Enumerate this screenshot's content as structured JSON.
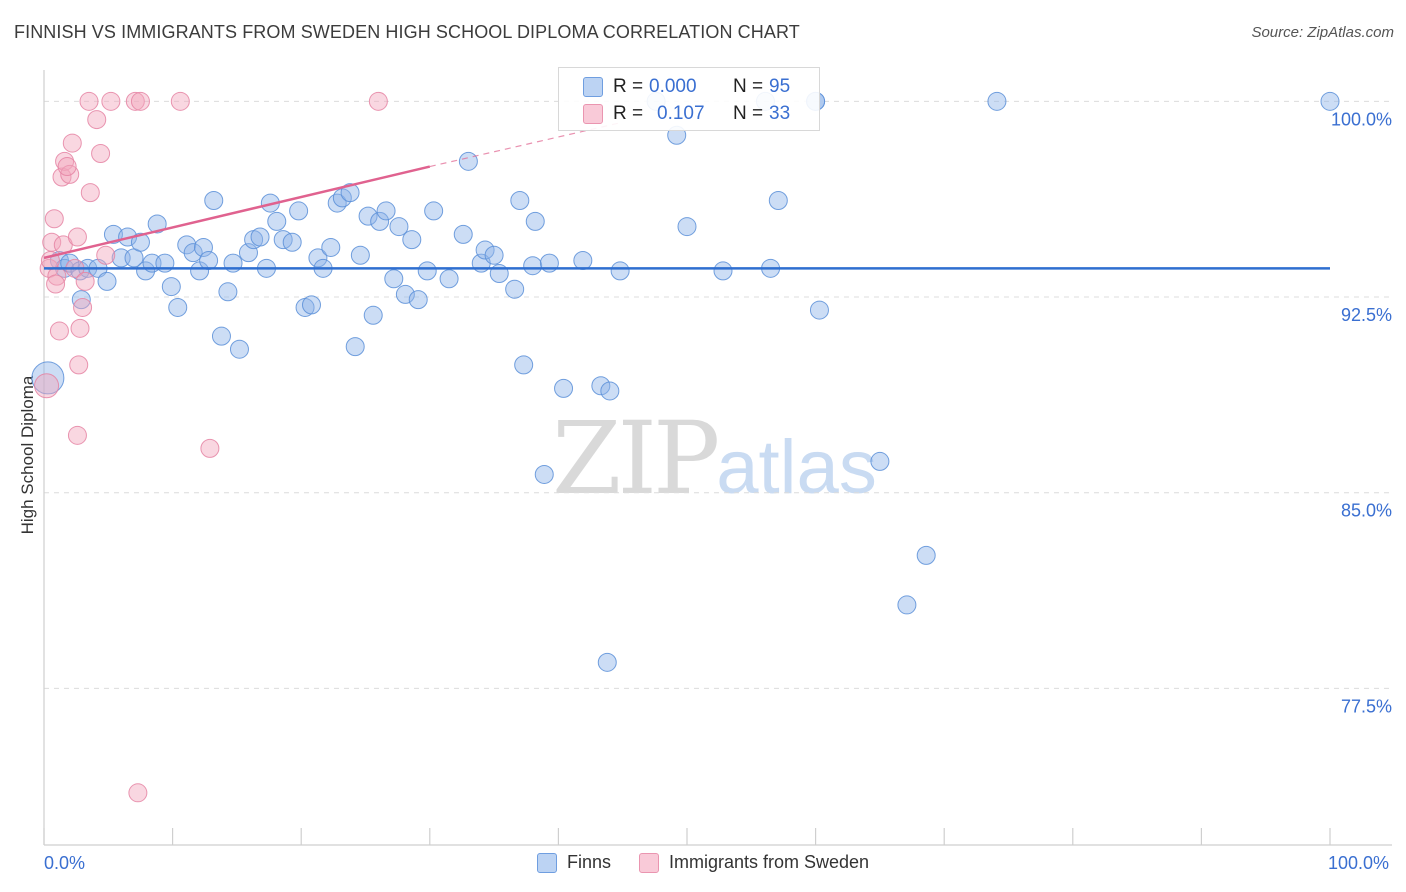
{
  "header": {
    "title": "FINNISH VS IMMIGRANTS FROM SWEDEN HIGH SCHOOL DIPLOMA CORRELATION CHART",
    "source": "Source: ZipAtlas.com"
  },
  "legend": {
    "r_label": "R =",
    "n_label": "N =",
    "finns": {
      "r": "0.000",
      "n": "95",
      "color": "#8fb4e8"
    },
    "sweden": {
      "r": "0.107",
      "n": "33",
      "color": "#f2a6bd"
    }
  },
  "watermark": {
    "zip": "ZIP",
    "atlas": "atlas"
  },
  "chart_data": {
    "type": "scatter",
    "title": "FINNISH VS IMMIGRANTS FROM SWEDEN HIGH SCHOOL DIPLOMA CORRELATION CHART",
    "xlabel": "",
    "ylabel": "High School Diploma",
    "xlim": [
      0,
      100
    ],
    "ylim": [
      71.5,
      101.2
    ],
    "x_tick_labels": [
      "0.0%",
      "100.0%"
    ],
    "y_ticks": [
      77.5,
      85.0,
      92.5,
      100.0
    ],
    "y_tick_labels": [
      "77.5%",
      "85.0%",
      "92.5%",
      "100.0%"
    ],
    "grid": true,
    "legend_position": "bottom",
    "series": [
      {
        "name": "Finns",
        "color": "#8fb4e8",
        "stroke": "#5b8fd8",
        "trend": {
          "x": [
            0,
            100
          ],
          "y": [
            93.6,
            93.6
          ],
          "color": "#2f6fd0"
        },
        "points": [
          [
            0.3,
            89.4,
            16
          ],
          [
            1.2,
            93.9,
            9
          ],
          [
            1.6,
            93.6,
            9
          ],
          [
            2.0,
            93.8,
            9
          ],
          [
            2.8,
            93.5,
            9
          ],
          [
            2.9,
            92.4,
            9
          ],
          [
            3.4,
            93.6,
            9
          ],
          [
            4.2,
            93.6,
            9
          ],
          [
            4.9,
            93.1,
            9
          ],
          [
            5.4,
            94.9,
            9
          ],
          [
            6.0,
            94.0,
            9
          ],
          [
            6.5,
            94.8,
            9
          ],
          [
            7.0,
            94.0,
            9
          ],
          [
            7.5,
            94.6,
            9
          ],
          [
            7.9,
            93.5,
            9
          ],
          [
            8.4,
            93.8,
            9
          ],
          [
            8.8,
            95.3,
            9
          ],
          [
            9.4,
            93.8,
            9
          ],
          [
            9.9,
            92.9,
            9
          ],
          [
            10.4,
            92.1,
            9
          ],
          [
            11.1,
            94.5,
            9
          ],
          [
            11.6,
            94.2,
            9
          ],
          [
            12.1,
            93.5,
            9
          ],
          [
            12.4,
            94.4,
            9
          ],
          [
            12.8,
            93.9,
            9
          ],
          [
            13.2,
            96.2,
            9
          ],
          [
            13.8,
            91.0,
            9
          ],
          [
            14.3,
            92.7,
            9
          ],
          [
            14.7,
            93.8,
            9
          ],
          [
            15.2,
            90.5,
            9
          ],
          [
            15.9,
            94.2,
            9
          ],
          [
            16.3,
            94.7,
            9
          ],
          [
            16.8,
            94.8,
            9
          ],
          [
            17.3,
            93.6,
            9
          ],
          [
            17.6,
            96.1,
            9
          ],
          [
            18.1,
            95.4,
            9
          ],
          [
            18.6,
            94.7,
            9
          ],
          [
            19.3,
            94.6,
            9
          ],
          [
            19.8,
            95.8,
            9
          ],
          [
            20.3,
            92.1,
            9
          ],
          [
            20.8,
            92.2,
            9
          ],
          [
            21.3,
            94.0,
            9
          ],
          [
            21.7,
            93.6,
            9
          ],
          [
            22.3,
            94.4,
            9
          ],
          [
            22.8,
            96.1,
            9
          ],
          [
            23.2,
            96.3,
            9
          ],
          [
            23.8,
            96.5,
            9
          ],
          [
            24.2,
            90.6,
            9
          ],
          [
            24.6,
            94.1,
            9
          ],
          [
            25.2,
            95.6,
            9
          ],
          [
            25.6,
            91.8,
            9
          ],
          [
            26.1,
            95.4,
            9
          ],
          [
            26.6,
            95.8,
            9
          ],
          [
            27.2,
            93.2,
            9
          ],
          [
            27.6,
            95.2,
            9
          ],
          [
            28.1,
            92.6,
            9
          ],
          [
            28.6,
            94.7,
            9
          ],
          [
            29.1,
            92.4,
            9
          ],
          [
            29.8,
            93.5,
            9
          ],
          [
            30.3,
            95.8,
            9
          ],
          [
            31.5,
            93.2,
            9
          ],
          [
            32.6,
            94.9,
            9
          ],
          [
            33.0,
            97.7,
            9
          ],
          [
            34.0,
            93.8,
            9
          ],
          [
            34.3,
            94.3,
            9
          ],
          [
            35.0,
            94.1,
            9
          ],
          [
            35.4,
            93.4,
            9
          ],
          [
            36.6,
            92.8,
            9
          ],
          [
            37.0,
            96.2,
            9
          ],
          [
            37.3,
            89.9,
            9
          ],
          [
            38.0,
            93.7,
            9
          ],
          [
            38.2,
            95.4,
            9
          ],
          [
            38.9,
            85.7,
            9
          ],
          [
            39.3,
            93.8,
            9
          ],
          [
            40.4,
            89.0,
            9
          ],
          [
            41.9,
            93.9,
            9
          ],
          [
            43.3,
            89.1,
            9
          ],
          [
            43.8,
            78.5,
            9
          ],
          [
            44.0,
            88.9,
            9
          ],
          [
            44.8,
            93.5,
            9
          ],
          [
            47.6,
            100.0,
            9
          ],
          [
            49.2,
            98.7,
            9
          ],
          [
            50.0,
            95.2,
            9
          ],
          [
            52.8,
            93.5,
            9
          ],
          [
            56.1,
            100.0,
            9
          ],
          [
            56.5,
            93.6,
            9
          ],
          [
            57.1,
            96.2,
            9
          ],
          [
            60.0,
            100.0,
            9
          ],
          [
            60.0,
            100.0,
            9
          ],
          [
            60.3,
            92.0,
            9
          ],
          [
            65.0,
            86.2,
            9
          ],
          [
            67.1,
            80.7,
            9
          ],
          [
            68.6,
            82.6,
            9
          ],
          [
            74.1,
            100.0,
            9
          ],
          [
            100.0,
            100.0,
            9
          ]
        ]
      },
      {
        "name": "Immigrants from Sweden",
        "color": "#f2a6bd",
        "stroke": "#e584a3",
        "trend": {
          "x": [
            0,
            30
          ],
          "y": [
            94.0,
            97.5
          ],
          "dash_to": [
            45,
            99.2
          ],
          "color": "#e0628f"
        },
        "points": [
          [
            0.2,
            89.1,
            12
          ],
          [
            0.4,
            93.6,
            9
          ],
          [
            0.6,
            94.6,
            9
          ],
          [
            0.8,
            95.5,
            9
          ],
          [
            1.0,
            93.3,
            9
          ],
          [
            1.2,
            91.2,
            9
          ],
          [
            1.4,
            97.1,
            9
          ],
          [
            1.5,
            94.5,
            9
          ],
          [
            1.6,
            97.7,
            9
          ],
          [
            2.0,
            97.2,
            9
          ],
          [
            2.2,
            98.4,
            9
          ],
          [
            2.4,
            93.6,
            9
          ],
          [
            2.6,
            94.8,
            9
          ],
          [
            2.6,
            87.2,
            9
          ],
          [
            2.7,
            89.9,
            9
          ],
          [
            2.8,
            91.3,
            9
          ],
          [
            3.0,
            92.1,
            9
          ],
          [
            3.2,
            93.1,
            9
          ],
          [
            3.5,
            100.0,
            9
          ],
          [
            3.6,
            96.5,
            9
          ],
          [
            4.1,
            99.3,
            9
          ],
          [
            4.4,
            98.0,
            9
          ],
          [
            4.8,
            94.1,
            9
          ],
          [
            5.2,
            100.0,
            9
          ],
          [
            7.1,
            100.0,
            9
          ],
          [
            7.3,
            73.5,
            9
          ],
          [
            7.5,
            100.0,
            9
          ],
          [
            10.6,
            100.0,
            9
          ],
          [
            12.9,
            86.7,
            9
          ],
          [
            26.0,
            100.0,
            9
          ],
          [
            0.5,
            93.9,
            9
          ],
          [
            1.8,
            97.5,
            9
          ],
          [
            0.9,
            93.0,
            9
          ]
        ]
      }
    ]
  },
  "bottom_legend": {
    "finns": "Finns",
    "sweden": "Immigrants from Sweden"
  }
}
